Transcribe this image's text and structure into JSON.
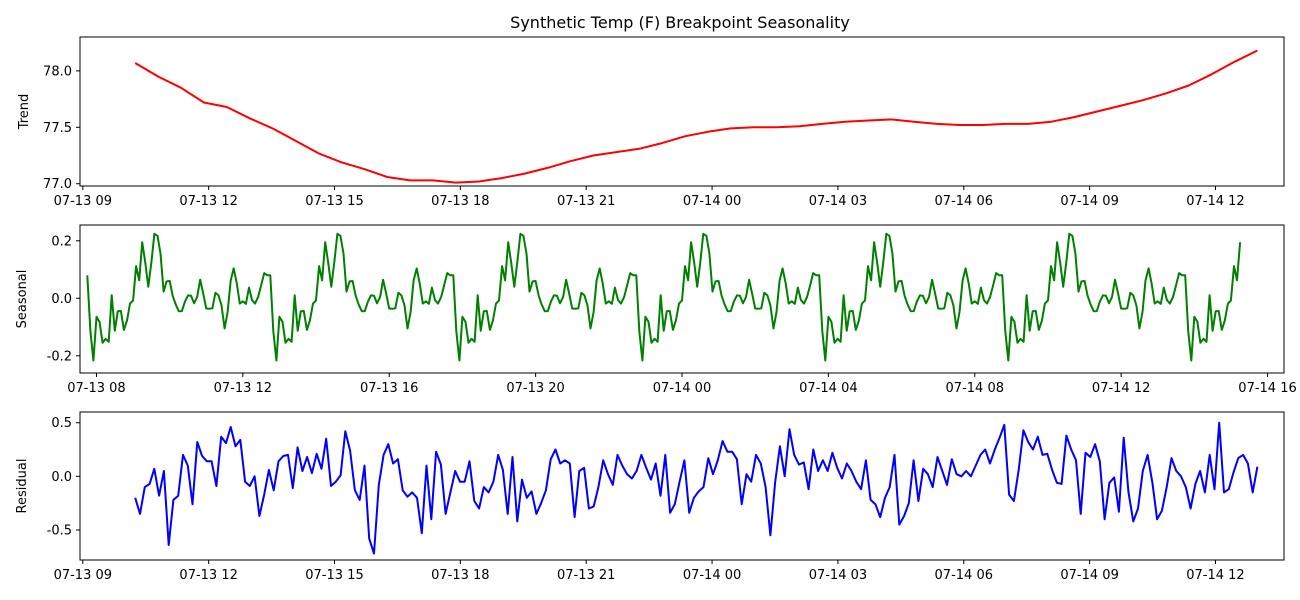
{
  "chart_data": [
    {
      "type": "line",
      "title": "Synthetic Temp (F) Breakpoint Seasonality",
      "ylabel": "Trend",
      "color": "#ff0000",
      "xlim": [
        "2024-07-13 08:56",
        "2024-07-14 13:38"
      ],
      "ylim": [
        76.98,
        78.3
      ],
      "xticks": [
        "07-13 09",
        "07-13 12",
        "07-13 15",
        "07-13 18",
        "07-13 21",
        "07-14 00",
        "07-14 03",
        "07-14 06",
        "07-14 09",
        "07-14 12"
      ],
      "yticks": [
        "77.0",
        "77.5",
        "78.0"
      ],
      "series": [
        {
          "x_start": "2024-07-13 10:15",
          "x_end": "2024-07-14 13:00",
          "values": [
            78.07,
            77.95,
            77.85,
            77.72,
            77.68,
            77.58,
            77.49,
            77.38,
            77.27,
            77.19,
            77.13,
            77.06,
            77.03,
            77.03,
            77.01,
            77.02,
            77.05,
            77.09,
            77.14,
            77.2,
            77.25,
            77.28,
            77.31,
            77.36,
            77.42,
            77.46,
            77.49,
            77.5,
            77.5,
            77.51,
            77.53,
            77.55,
            77.56,
            77.57,
            77.55,
            77.53,
            77.52,
            77.52,
            77.53,
            77.53,
            77.55,
            77.59,
            77.64,
            77.69,
            77.74,
            77.8,
            77.87,
            77.97,
            78.08,
            78.18
          ]
        }
      ]
    },
    {
      "type": "line",
      "ylabel": "Seasonal",
      "color": "#008000",
      "xlim": [
        "2024-07-13 07:33",
        "2024-07-14 16:27"
      ],
      "ylim": [
        -0.26,
        0.255
      ],
      "xticks": [
        "07-13 08",
        "07-13 12",
        "07-13 16",
        "07-13 20",
        "07-14 00",
        "07-14 04",
        "07-14 08",
        "07-14 12",
        "07-14 16"
      ],
      "yticks": [
        "-0.2",
        "0.0",
        "0.2"
      ],
      "series": [
        {
          "x_start": "2024-07-13 07:45",
          "x_end": "2024-07-14 15:15",
          "period_hours": 5,
          "values": [
            0.08,
            -0.14,
            -0.24,
            0.03,
            -0.18,
            -0.12,
            -0.19,
            0.02,
            -0.12,
            -0.03,
            -0.05,
            -0.15,
            0.0,
            -0.05,
            0.12,
            0.06,
            0.21,
            0.1,
            0.01,
            0.22,
            0.23,
            0.19,
            0.02,
            0.06,
            0.06,
            -0.01,
            -0.03,
            -0.06,
            -0.02,
            0.01,
            0.01,
            -0.02,
            0.01,
            0.09,
            -0.04,
            -0.03,
            -0.05,
            0.02,
            0.01,
            -0.03,
            -0.13,
            0.0,
            0.12,
            0.08,
            -0.02,
            -0.01,
            -0.02,
            0.05,
            -0.03,
            -0.01,
            0.02,
            0.09,
            0.08
          ]
        }
      ]
    },
    {
      "type": "line",
      "ylabel": "Residual",
      "color": "#0000ff",
      "xlim": [
        "2024-07-13 08:56",
        "2024-07-14 13:38"
      ],
      "ylim": [
        -0.78,
        0.6
      ],
      "xticks": [
        "07-13 09",
        "07-13 12",
        "07-13 15",
        "07-13 18",
        "07-13 21",
        "07-14 00",
        "07-14 03",
        "07-14 06",
        "07-14 09",
        "07-14 12"
      ],
      "yticks": [
        "-0.5",
        "0.0",
        "0.5"
      ],
      "series": [
        {
          "x_start": "2024-07-13 10:15",
          "x_end": "2024-07-14 13:00",
          "values": [
            -0.2,
            -0.35,
            -0.1,
            -0.07,
            0.07,
            -0.18,
            0.05,
            -0.64,
            -0.22,
            -0.18,
            0.2,
            0.1,
            -0.26,
            0.32,
            0.19,
            0.14,
            0.14,
            -0.09,
            0.37,
            0.31,
            0.46,
            0.28,
            0.34,
            -0.05,
            -0.09,
            0.0,
            -0.37,
            -0.17,
            0.06,
            -0.13,
            0.14,
            0.19,
            0.2,
            -0.11,
            0.27,
            0.05,
            0.18,
            0.03,
            0.21,
            0.07,
            0.35,
            -0.09,
            -0.05,
            0.01,
            0.42,
            0.24,
            -0.13,
            -0.22,
            0.1,
            -0.58,
            -0.72,
            -0.08,
            0.2,
            0.3,
            0.12,
            0.16,
            -0.13,
            -0.19,
            -0.15,
            -0.2,
            -0.53,
            0.1,
            -0.4,
            0.23,
            0.11,
            -0.35,
            -0.15,
            0.05,
            -0.05,
            -0.05,
            0.14,
            -0.23,
            -0.3,
            -0.1,
            -0.15,
            -0.05,
            0.2,
            0.06,
            -0.35,
            0.18,
            -0.42,
            -0.03,
            -0.2,
            -0.14,
            -0.35,
            -0.25,
            -0.13,
            0.16,
            0.25,
            0.12,
            0.15,
            0.12,
            -0.38,
            0.05,
            0.08,
            -0.3,
            -0.28,
            -0.1,
            0.15,
            0.02,
            -0.08,
            0.2,
            0.1,
            0.02,
            -0.02,
            0.05,
            0.2,
            0.08,
            -0.03,
            0.12,
            -0.18,
            0.2,
            -0.34,
            -0.26,
            -0.05,
            0.15,
            -0.34,
            -0.2,
            -0.14,
            -0.1,
            0.17,
            0.02,
            0.15,
            0.33,
            0.23,
            0.23,
            0.16,
            -0.26,
            0.02,
            -0.05,
            0.2,
            0.12,
            -0.1,
            -0.55,
            -0.06,
            0.28,
            0.0,
            0.44,
            0.2,
            0.11,
            0.13,
            -0.12,
            0.25,
            0.05,
            0.15,
            0.05,
            0.22,
            0.08,
            -0.02,
            0.12,
            0.05,
            -0.05,
            -0.12,
            0.15,
            -0.22,
            -0.26,
            -0.38,
            -0.2,
            -0.1,
            0.2,
            -0.45,
            -0.37,
            -0.25,
            0.15,
            -0.23,
            0.07,
            0.02,
            -0.1,
            0.18,
            0.05,
            -0.08,
            0.16,
            0.02,
            0.0,
            0.05,
            0.0,
            0.1,
            0.2,
            0.25,
            0.12,
            0.25,
            0.36,
            0.48,
            -0.17,
            -0.23,
            0.06,
            0.43,
            0.32,
            0.25,
            0.37,
            0.2,
            0.21,
            0.06,
            -0.06,
            -0.07,
            0.38,
            0.25,
            0.15,
            -0.35,
            0.22,
            0.18,
            0.3,
            0.14,
            -0.4,
            -0.06,
            -0.01,
            -0.33,
            0.36,
            -0.15,
            -0.42,
            -0.3,
            0.05,
            0.2,
            -0.06,
            -0.4,
            -0.32,
            -0.1,
            0.17,
            0.05,
            0.0,
            -0.1,
            -0.3,
            -0.07,
            0.05,
            -0.15,
            0.2,
            -0.12,
            0.5,
            -0.15,
            -0.12,
            0.04,
            0.17,
            0.2,
            0.12,
            -0.15,
            0.09
          ]
        }
      ]
    }
  ]
}
